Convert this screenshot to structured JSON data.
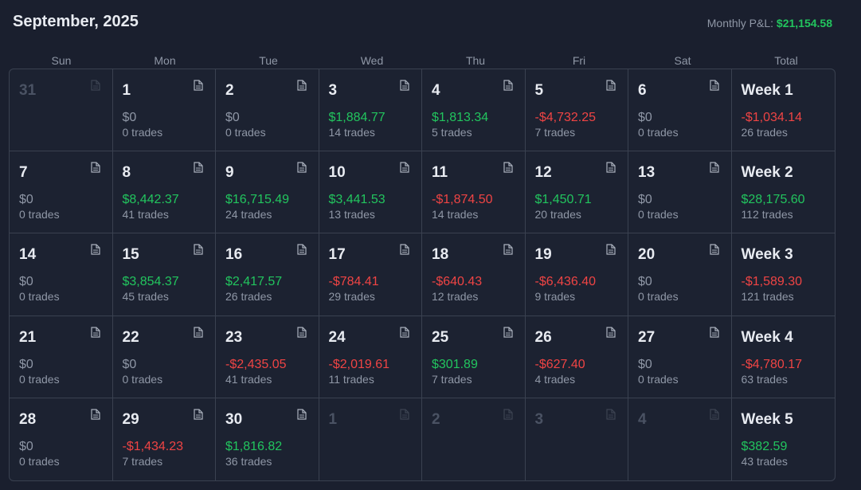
{
  "header": {
    "title": "September, 2025",
    "monthly_pnl_label": "Monthly P&L:",
    "monthly_pnl_value": "$21,154.58"
  },
  "weekdays": [
    "Sun",
    "Mon",
    "Tue",
    "Wed",
    "Thu",
    "Fri",
    "Sat",
    "Total"
  ],
  "colors": {
    "positive": "#22c55e",
    "negative": "#ef4444",
    "neutral": "#8f97a6"
  },
  "icon": "note-icon",
  "weeks": [
    {
      "days": [
        {
          "date": "31",
          "muted": true
        },
        {
          "date": "1",
          "amount": "$0",
          "trades": "0 trades",
          "sign": "zero"
        },
        {
          "date": "2",
          "amount": "$0",
          "trades": "0 trades",
          "sign": "zero"
        },
        {
          "date": "3",
          "amount": "$1,884.77",
          "trades": "14 trades",
          "sign": "pos"
        },
        {
          "date": "4",
          "amount": "$1,813.34",
          "trades": "5 trades",
          "sign": "pos"
        },
        {
          "date": "5",
          "amount": "-$4,732.25",
          "trades": "7 trades",
          "sign": "neg"
        },
        {
          "date": "6",
          "amount": "$0",
          "trades": "0 trades",
          "sign": "zero"
        }
      ],
      "total": {
        "label": "Week 1",
        "amount": "-$1,034.14",
        "trades": "26 trades",
        "sign": "neg"
      }
    },
    {
      "days": [
        {
          "date": "7",
          "amount": "$0",
          "trades": "0 trades",
          "sign": "zero"
        },
        {
          "date": "8",
          "amount": "$8,442.37",
          "trades": "41 trades",
          "sign": "pos"
        },
        {
          "date": "9",
          "amount": "$16,715.49",
          "trades": "24 trades",
          "sign": "pos"
        },
        {
          "date": "10",
          "amount": "$3,441.53",
          "trades": "13 trades",
          "sign": "pos"
        },
        {
          "date": "11",
          "amount": "-$1,874.50",
          "trades": "14 trades",
          "sign": "neg"
        },
        {
          "date": "12",
          "amount": "$1,450.71",
          "trades": "20 trades",
          "sign": "pos"
        },
        {
          "date": "13",
          "amount": "$0",
          "trades": "0 trades",
          "sign": "zero"
        }
      ],
      "total": {
        "label": "Week 2",
        "amount": "$28,175.60",
        "trades": "112 trades",
        "sign": "pos"
      }
    },
    {
      "days": [
        {
          "date": "14",
          "amount": "$0",
          "trades": "0 trades",
          "sign": "zero"
        },
        {
          "date": "15",
          "amount": "$3,854.37",
          "trades": "45 trades",
          "sign": "pos"
        },
        {
          "date": "16",
          "amount": "$2,417.57",
          "trades": "26 trades",
          "sign": "pos"
        },
        {
          "date": "17",
          "amount": "-$784.41",
          "trades": "29 trades",
          "sign": "neg"
        },
        {
          "date": "18",
          "amount": "-$640.43",
          "trades": "12 trades",
          "sign": "neg"
        },
        {
          "date": "19",
          "amount": "-$6,436.40",
          "trades": "9 trades",
          "sign": "neg"
        },
        {
          "date": "20",
          "amount": "$0",
          "trades": "0 trades",
          "sign": "zero"
        }
      ],
      "total": {
        "label": "Week 3",
        "amount": "-$1,589.30",
        "trades": "121 trades",
        "sign": "neg"
      }
    },
    {
      "days": [
        {
          "date": "21",
          "amount": "$0",
          "trades": "0 trades",
          "sign": "zero"
        },
        {
          "date": "22",
          "amount": "$0",
          "trades": "0 trades",
          "sign": "zero"
        },
        {
          "date": "23",
          "amount": "-$2,435.05",
          "trades": "41 trades",
          "sign": "neg"
        },
        {
          "date": "24",
          "amount": "-$2,019.61",
          "trades": "11 trades",
          "sign": "neg"
        },
        {
          "date": "25",
          "amount": "$301.89",
          "trades": "7 trades",
          "sign": "pos"
        },
        {
          "date": "26",
          "amount": "-$627.40",
          "trades": "4 trades",
          "sign": "neg"
        },
        {
          "date": "27",
          "amount": "$0",
          "trades": "0 trades",
          "sign": "zero"
        }
      ],
      "total": {
        "label": "Week 4",
        "amount": "-$4,780.17",
        "trades": "63 trades",
        "sign": "neg"
      }
    },
    {
      "days": [
        {
          "date": "28",
          "amount": "$0",
          "trades": "0 trades",
          "sign": "zero"
        },
        {
          "date": "29",
          "amount": "-$1,434.23",
          "trades": "7 trades",
          "sign": "neg"
        },
        {
          "date": "30",
          "amount": "$1,816.82",
          "trades": "36 trades",
          "sign": "pos"
        },
        {
          "date": "1",
          "muted": true
        },
        {
          "date": "2",
          "muted": true
        },
        {
          "date": "3",
          "muted": true
        },
        {
          "date": "4",
          "muted": true
        }
      ],
      "total": {
        "label": "Week 5",
        "amount": "$382.59",
        "trades": "43 trades",
        "sign": "pos"
      }
    }
  ]
}
